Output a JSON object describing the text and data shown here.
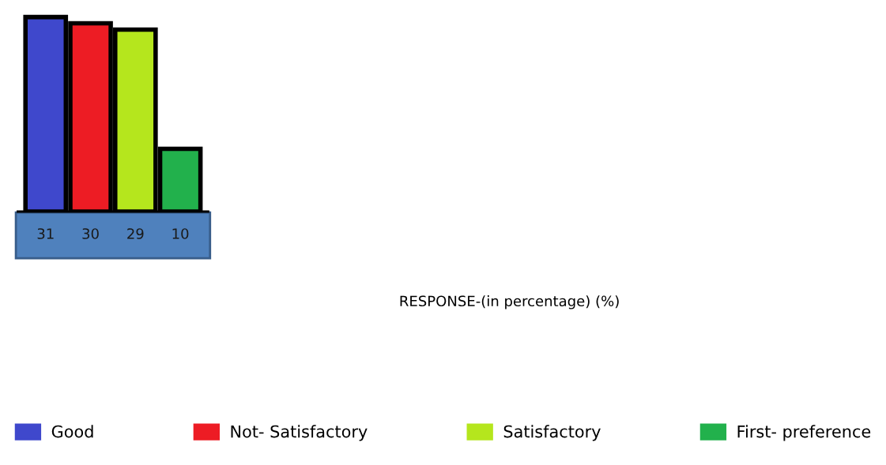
{
  "chart_data": {
    "type": "bar",
    "categories": [
      null
    ],
    "series": [
      {
        "name": "Good",
        "color": "#3f48cc",
        "values": [
          31
        ]
      },
      {
        "name": "Not- Satisfactory",
        "color": "#ed1c24",
        "values": [
          30
        ]
      },
      {
        "name": "Satisfactory",
        "color": "#b5e61d",
        "values": [
          29
        ]
      },
      {
        "name": "First- preference",
        "color": "#22b14c",
        "values": [
          10
        ]
      }
    ],
    "data_labels": true,
    "annotations": [
      "RESPONSE-(in percentage) (%)"
    ],
    "legend": "bottom",
    "tick_labels": false
  }
}
